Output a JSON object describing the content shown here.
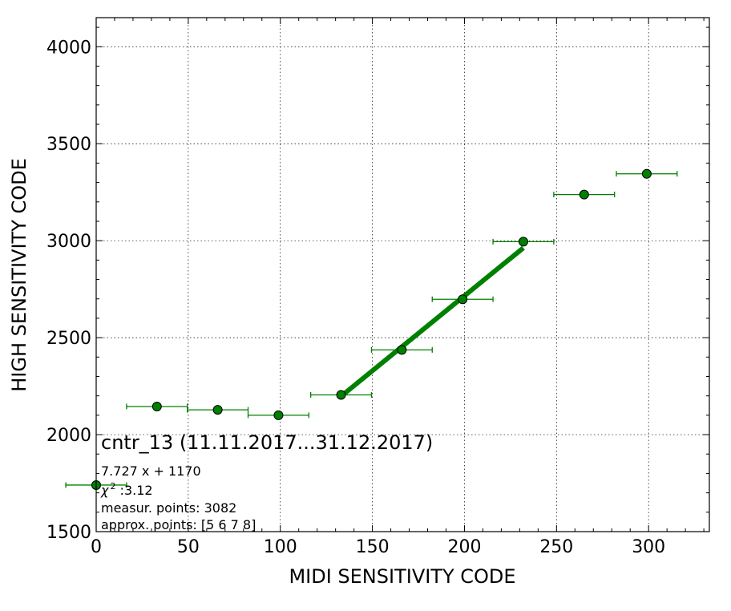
{
  "chart_data": {
    "type": "scatter",
    "xlabel": "MIDI SENSITIVITY CODE",
    "ylabel": "HIGH SENSITIVITY CODE",
    "xlim": [
      0,
      333
    ],
    "ylim": [
      1500,
      4150
    ],
    "xticks": [
      0,
      50,
      100,
      150,
      200,
      250,
      300
    ],
    "yticks": [
      1500,
      2000,
      2500,
      3000,
      3500,
      4000
    ],
    "grid": true,
    "colors": {
      "points": "#008000",
      "fit": "#008000",
      "edge": "#000000"
    },
    "series": [
      {
        "x": [
          0,
          33,
          66,
          99,
          133,
          166,
          199,
          232,
          265,
          299
        ],
        "y": [
          1740,
          2145,
          2128,
          2100,
          2205,
          2437,
          2698,
          2995,
          3238,
          3345
        ],
        "xerr": [
          16.5,
          16.5,
          16.5,
          16.5,
          16.5,
          16.5,
          16.5,
          16.5,
          16.5,
          16.5
        ]
      }
    ],
    "fit_line": {
      "x": [
        133,
        232
      ],
      "y": [
        2198,
        2963
      ]
    },
    "annotations": {
      "title": "cntr_13 (11.11.2017...31.12.2017)",
      "equation": "7.727 x + 1170",
      "chi_symbol": "χ",
      "chi_power": "2",
      "chi_value": " :3.12",
      "measured": "measur. points: 3082",
      "approx": "approx. points: [5 6 7 8]"
    }
  }
}
